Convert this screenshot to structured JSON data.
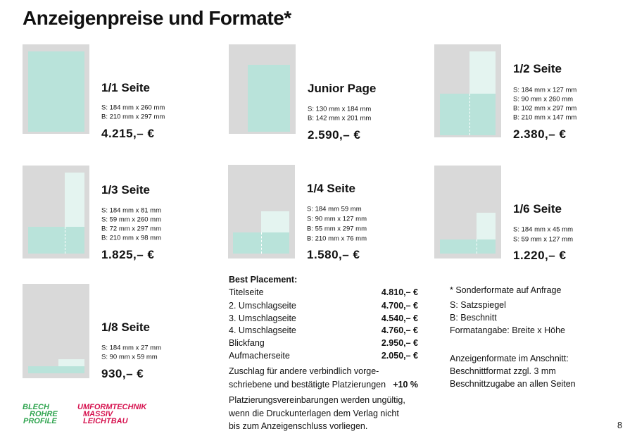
{
  "title": "Anzeigenpreise und Formate*",
  "formats": [
    {
      "name": "1/1 Seite",
      "sizes": [
        "S: 184 mm x 260 mm",
        "B: 210 mm x 297 mm"
      ],
      "price": "4.215,– €"
    },
    {
      "name": "Junior Page",
      "sizes": [
        "S: 130 mm x 184 mm",
        "B: 142 mm x 201 mm"
      ],
      "price": "2.590,– €"
    },
    {
      "name": "1/2 Seite",
      "sizes": [
        "S: 184 mm x 127 mm",
        "S: 90 mm x 260 mm",
        "B: 102 mm x 297 mm",
        "B: 210 mm x 147 mm"
      ],
      "price": "2.380,– €"
    },
    {
      "name": "1/3 Seite",
      "sizes": [
        "S: 184 mm x 81 mm",
        "S: 59 mm x 260 mm",
        "B: 72 mm x 297 mm",
        "B: 210 mm x 98 mm"
      ],
      "price": "1.825,– €"
    },
    {
      "name": "1/4 Seite",
      "sizes": [
        "S: 184 mm 59 mm",
        "S: 90 mm x 127 mm",
        "B: 55 mm x 297 mm",
        "B: 210 mm x 76 mm"
      ],
      "price": "1.580,– €"
    },
    {
      "name": "1/6 Seite",
      "sizes": [
        "S: 184 mm x 45 mm",
        "S: 59 mm x 127 mm"
      ],
      "price": "1.220,– €"
    },
    {
      "name": "1/8 Seite",
      "sizes": [
        "S: 184 mm x 27 mm",
        "S: 90 mm x 59 mm"
      ],
      "price": "930,– €"
    }
  ],
  "placement": {
    "heading": "Best Placement:",
    "rows": [
      [
        "Titelseite",
        "4.810,– €"
      ],
      [
        "2. Umschlagseite",
        "4.700,– €"
      ],
      [
        "3. Umschlagseite",
        "4.540,– €"
      ],
      [
        "4. Umschlagseite",
        "4.760,– €"
      ],
      [
        "Blickfang",
        "2.950,– €"
      ],
      [
        "Aufmacherseite",
        "2.050,– €"
      ]
    ],
    "surcharge": {
      "lines": [
        "Zuschlag für andere verbindlich vorge-",
        "schriebene und bestätigte Platzierungen"
      ],
      "value": "+10 %"
    },
    "note": [
      "Platzierungsvereinbarungen werden ungültig,",
      "wenn die Druckunterlagen dem Verlag nicht",
      "bis zum Anzeigenschluss vorliegen."
    ]
  },
  "notes": [
    [
      "* Sonderformate auf Anfrage",
      "S: Satzspiegel",
      "B: Beschnitt",
      "Formatangabe: Breite x Höhe"
    ],
    [
      "Anzeigenformate im Anschnitt:",
      "Beschnittformat zzgl. 3 mm",
      "Beschnittzugabe an allen Seiten"
    ]
  ],
  "logos": [
    [
      "BLECH",
      "ROHRE",
      "PROFILE"
    ],
    [
      "UMFORMTECHNIK",
      "MASSIV",
      "LEICHTBAU"
    ]
  ],
  "page_number": "8"
}
